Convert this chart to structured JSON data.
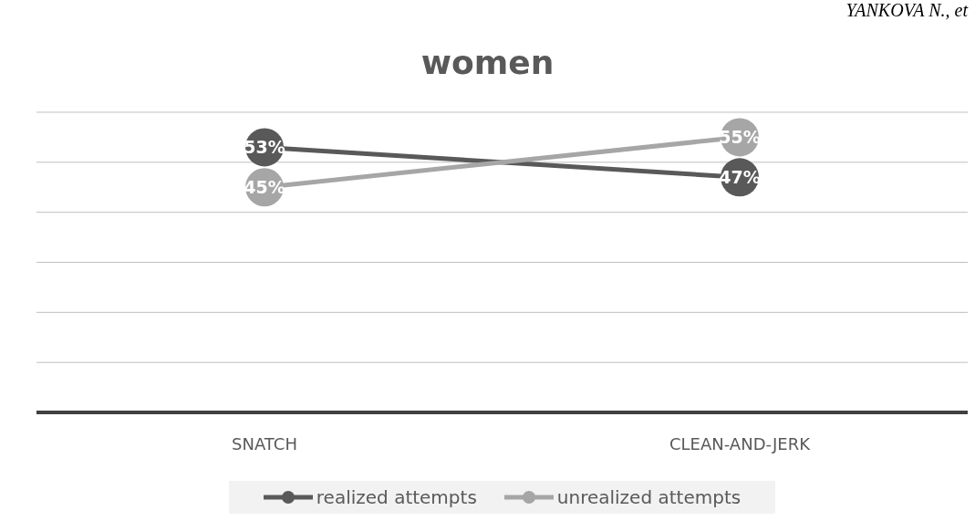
{
  "chart_data": {
    "type": "line",
    "title": "women",
    "categories": [
      "SNATCH",
      "CLEAN-AND-JERK"
    ],
    "series": [
      {
        "name": "realized attempts",
        "color": "#595959",
        "values": [
          53,
          47
        ],
        "value_labels": [
          "53%",
          "47%"
        ]
      },
      {
        "name": "unrealized attempts",
        "color": "#a6a6a6",
        "values": [
          45,
          55
        ],
        "value_labels": [
          "45%",
          "55%"
        ]
      }
    ],
    "ylim": [
      0,
      60
    ],
    "yticks": [
      {
        "value": 0,
        "label": null
      },
      {
        "value": 10,
        "label": null
      },
      {
        "value": 20,
        "label": null
      },
      {
        "value": 30,
        "label": null
      },
      {
        "value": 40,
        "label": null
      },
      {
        "value": 50,
        "label": null
      },
      {
        "value": 60,
        "label": null
      }
    ],
    "grid": "y",
    "legend": "bottom",
    "tick_labels": "x",
    "marker": "circle",
    "annotations": [
      "YANKOVA N., et"
    ]
  }
}
